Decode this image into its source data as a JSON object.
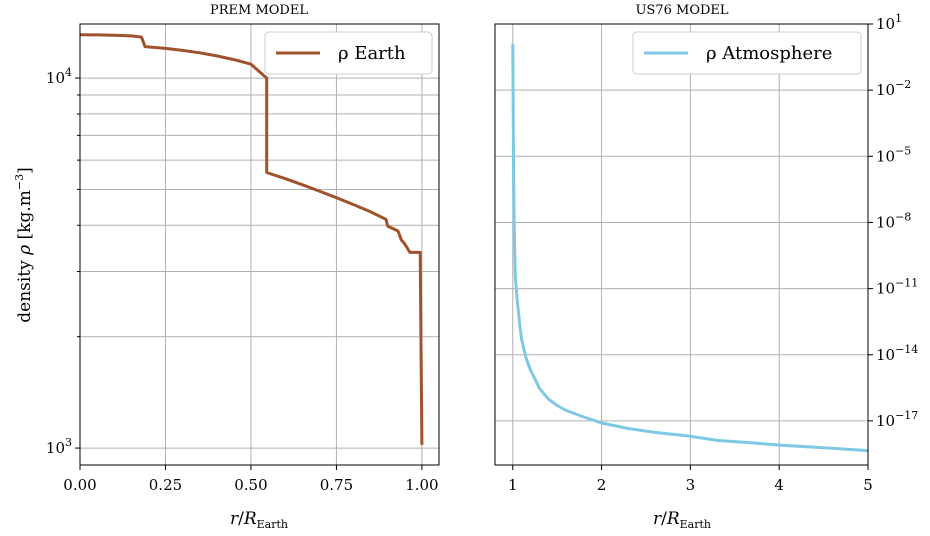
{
  "chart_data": [
    {
      "type": "line",
      "title": "PREM MODEL",
      "xlabel": "r/R_Earth",
      "ylabel": "density ρ [kg.m⁻³]",
      "xlim": [
        0,
        1.05
      ],
      "ylim": [
        900,
        14000
      ],
      "yscale": "log",
      "xticks": [
        0,
        0.25,
        0.5,
        0.75,
        1.0
      ],
      "xtick_labels": [
        "0.00",
        "0.25",
        "0.50",
        "0.75",
        "1.00"
      ],
      "ytick_labels": [
        {
          "base": "10",
          "exp": "4"
        },
        {
          "base": "10",
          "exp": "3"
        }
      ],
      "grid": true,
      "legend": {
        "label": "ρ Earth",
        "position": "top-right"
      },
      "series": [
        {
          "name": "ρ Earth",
          "color": "#a0522d",
          "x": [
            0.0,
            0.05,
            0.1,
            0.15,
            0.18,
            0.19,
            0.25,
            0.3,
            0.35,
            0.4,
            0.45,
            0.5,
            0.546,
            0.546,
            0.55,
            0.6,
            0.65,
            0.7,
            0.75,
            0.8,
            0.85,
            0.895,
            0.9,
            0.93,
            0.94,
            0.95,
            0.965,
            0.97,
            0.995,
            1.0
          ],
          "y": [
            13088,
            13080,
            13050,
            13000,
            12900,
            12166,
            12030,
            11880,
            11700,
            11480,
            11220,
            10900,
            10000,
            5560,
            5540,
            5350,
            5150,
            4950,
            4750,
            4550,
            4350,
            4150,
            3980,
            3860,
            3650,
            3560,
            3380,
            3380,
            3380,
            1020
          ]
        }
      ]
    },
    {
      "type": "line",
      "title": "US76 MODEL",
      "xlabel": "r/R_Earth",
      "ylabel": "",
      "xlim": [
        0.8,
        5
      ],
      "ylim": [
        1e-19,
        10
      ],
      "yscale": "log",
      "xticks": [
        1,
        2,
        3,
        4,
        5
      ],
      "xtick_labels": [
        "1",
        "2",
        "3",
        "4",
        "5"
      ],
      "ytick_labels": [
        {
          "base": "10",
          "exp": "1"
        },
        {
          "base": "10",
          "exp": "−2"
        },
        {
          "base": "10",
          "exp": "−5"
        },
        {
          "base": "10",
          "exp": "−8"
        },
        {
          "base": "10",
          "exp": "−11"
        },
        {
          "base": "10",
          "exp": "−14"
        },
        {
          "base": "10",
          "exp": "−17"
        }
      ],
      "yaxis_position": "right",
      "grid": true,
      "legend": {
        "label": "ρ Atmosphere",
        "position": "top-right"
      },
      "series": [
        {
          "name": "ρ Atmosphere",
          "color": "#7ec8e3",
          "x": [
            1.0,
            1.005,
            1.01,
            1.02,
            1.03,
            1.05,
            1.08,
            1.1,
            1.15,
            1.2,
            1.25,
            1.3,
            1.4,
            1.5,
            1.6,
            1.8,
            2.0,
            2.3,
            2.6,
            3.0,
            3.3,
            3.7,
            4.0,
            4.5,
            5.0
          ],
          "y": [
            1.2,
            0.001,
            1e-06,
            1e-09,
            3e-11,
            3e-12,
            2e-13,
            5e-14,
            7e-15,
            2e-15,
            8e-16,
            3e-16,
            1e-16,
            5e-17,
            3e-17,
            1.5e-17,
            8e-18,
            4.5e-18,
            3e-18,
            2e-18,
            1.3e-18,
            1e-18,
            8e-19,
            6e-19,
            4.5e-19
          ]
        }
      ]
    }
  ]
}
